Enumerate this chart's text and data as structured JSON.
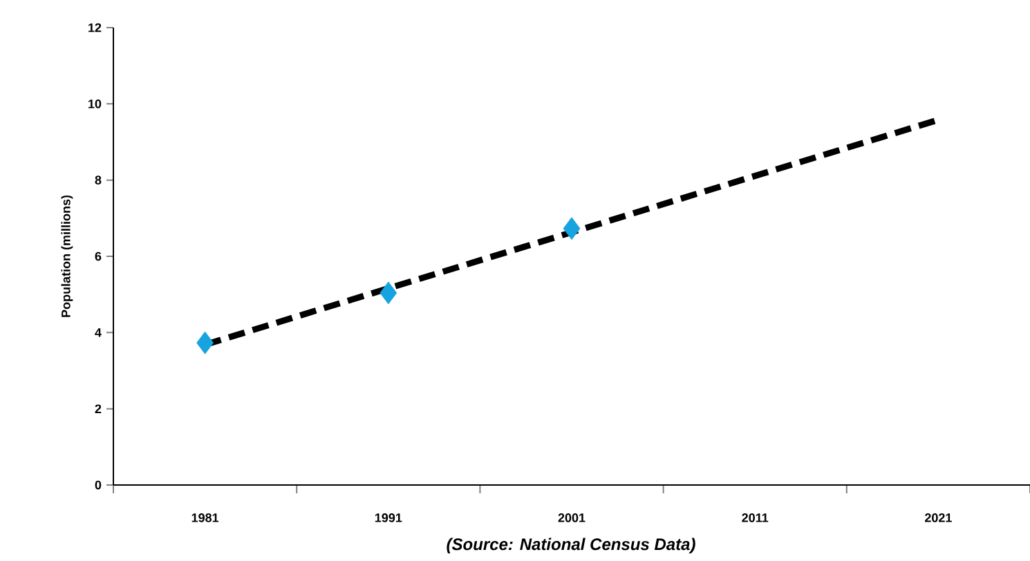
{
  "chart_data": {
    "type": "line",
    "ylabel": "Population (millions)",
    "categories": [
      "1981",
      "1991",
      "2001",
      "2011",
      "2021"
    ],
    "series": [
      {
        "type": "scatter",
        "color": "#17a2e0",
        "marker": "diamond",
        "values": [
          3.73,
          5.04,
          6.73,
          null,
          null
        ]
      },
      {
        "color": "#000000",
        "line_style": "dashed",
        "marker": "none",
        "values": [
          3.68,
          5.16,
          6.63,
          8.11,
          9.58
        ]
      }
    ],
    "ylim": [
      0,
      12
    ],
    "yticks": [
      0,
      2,
      4,
      6,
      8,
      10,
      12
    ],
    "annotations": [
      "(Source: National Census Data)"
    ]
  }
}
